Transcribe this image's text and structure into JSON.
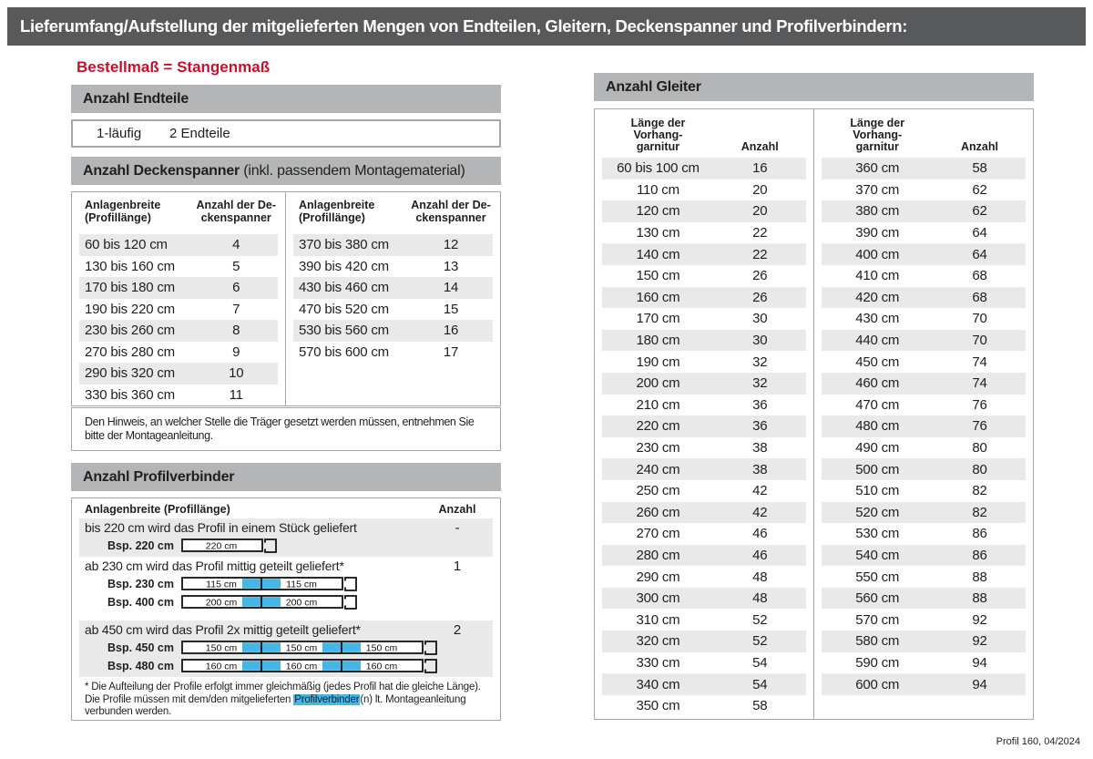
{
  "colors": {
    "banner_bg": "#58595b",
    "section_bar_bg": "#b3b5b6",
    "row_shade": "#e9e9e9",
    "accent_red": "#c8102e",
    "highlight_blue": "#45b6e6",
    "border_gray": "#a6a8ab"
  },
  "page": {
    "banner": "Lieferumfang/Aufstellung der mitgelieferten Mengen von Endteilen, Gleitern, Deckenspanner und Profilverbindern:",
    "order_note": "Bestellmaß = Stangenmaß",
    "footer": "Profil 160, 04/2024"
  },
  "endteile": {
    "bar": "Anzahl Endteile",
    "row_label": "1-läufig",
    "row_value": "2 Endteile"
  },
  "deckenspanner": {
    "bar_bold": "Anzahl Deckenspanner",
    "bar_rest": " (inkl. passendem Montagematerial)",
    "col_label_line1": "Anlagenbreite",
    "col_label_line2": "(Profillänge)",
    "col_value_line1": "Anzahl der De-",
    "col_value_line2": "ckenspanner",
    "left_rows": [
      [
        "60 bis 120 cm",
        "4"
      ],
      [
        "130 bis 160 cm",
        "5"
      ],
      [
        "170 bis 180 cm",
        "6"
      ],
      [
        "190 bis 220 cm",
        "7"
      ],
      [
        "230 bis 260 cm",
        "8"
      ],
      [
        "270 bis 280 cm",
        "9"
      ],
      [
        "290 bis 320 cm",
        "10"
      ],
      [
        "330 bis 360 cm",
        "11"
      ]
    ],
    "right_rows": [
      [
        "370 bis 380 cm",
        "12"
      ],
      [
        "390 bis 420 cm",
        "13"
      ],
      [
        "430 bis 460 cm",
        "14"
      ],
      [
        "470 bis 520 cm",
        "15"
      ],
      [
        "530 bis 560 cm",
        "16"
      ],
      [
        "570 bis 600 cm",
        "17"
      ]
    ],
    "note": "Den Hinweis, an welcher Stelle die Träger gesetzt werden müssen, entnehmen Sie bitte der Montageanleitung."
  },
  "profilverbinder": {
    "bar": "Anzahl Profilverbinder",
    "col_label": "Anlagenbreite (Profillänge)",
    "col_value": "Anzahl",
    "cases": [
      {
        "text": "bis 220 cm wird das Profil in einem Stück geliefert",
        "count": "-",
        "shaded": true,
        "examples": [
          {
            "label": "Bsp. 220 cm",
            "segments": [
              "220 cm"
            ]
          }
        ]
      },
      {
        "text": "ab 230 cm wird das Profil mittig geteilt geliefert*",
        "count": "1",
        "shaded": false,
        "examples": [
          {
            "label": "Bsp. 230 cm",
            "segments": [
              "115 cm",
              "115 cm"
            ]
          },
          {
            "label": "Bsp. 400 cm",
            "segments": [
              "200 cm",
              "200 cm"
            ]
          }
        ]
      },
      {
        "text": "ab 450 cm wird das Profil 2x mittig geteilt geliefert*",
        "count": "2",
        "shaded": true,
        "examples": [
          {
            "label": "Bsp. 450 cm",
            "segments": [
              "150 cm",
              "150 cm",
              "150 cm"
            ]
          },
          {
            "label": "Bsp. 480 cm",
            "segments": [
              "160 cm",
              "160 cm",
              "160 cm"
            ]
          }
        ]
      }
    ],
    "footnote_before": "* Die Aufteilung der Profile erfolgt immer gleichmäßig (jedes Profil hat die gleiche Länge). Die Profile müssen mit dem/den mitgelieferten ",
    "footnote_highlight": "Profilverbinder",
    "footnote_after": "(n) lt. Montageanleitung verbunden werden."
  },
  "gleiter": {
    "bar": "Anzahl Gleiter",
    "col_label_line1": "Länge der",
    "col_label_line2": "Vorhang-",
    "col_label_line3": "garnitur",
    "col_value": "Anzahl",
    "left_rows": [
      [
        "60 bis 100 cm",
        "16"
      ],
      [
        "110 cm",
        "20"
      ],
      [
        "120 cm",
        "20"
      ],
      [
        "130 cm",
        "22"
      ],
      [
        "140 cm",
        "22"
      ],
      [
        "150 cm",
        "26"
      ],
      [
        "160 cm",
        "26"
      ],
      [
        "170 cm",
        "30"
      ],
      [
        "180 cm",
        "30"
      ],
      [
        "190 cm",
        "32"
      ],
      [
        "200 cm",
        "32"
      ],
      [
        "210 cm",
        "36"
      ],
      [
        "220 cm",
        "36"
      ],
      [
        "230 cm",
        "38"
      ],
      [
        "240 cm",
        "38"
      ],
      [
        "250 cm",
        "42"
      ],
      [
        "260 cm",
        "42"
      ],
      [
        "270 cm",
        "46"
      ],
      [
        "280 cm",
        "46"
      ],
      [
        "290 cm",
        "48"
      ],
      [
        "300 cm",
        "48"
      ],
      [
        "310 cm",
        "52"
      ],
      [
        "320 cm",
        "52"
      ],
      [
        "330 cm",
        "54"
      ],
      [
        "340 cm",
        "54"
      ],
      [
        "350 cm",
        "58"
      ]
    ],
    "right_rows": [
      [
        "360 cm",
        "58"
      ],
      [
        "370 cm",
        "62"
      ],
      [
        "380 cm",
        "62"
      ],
      [
        "390 cm",
        "64"
      ],
      [
        "400 cm",
        "64"
      ],
      [
        "410 cm",
        "68"
      ],
      [
        "420 cm",
        "68"
      ],
      [
        "430 cm",
        "70"
      ],
      [
        "440 cm",
        "70"
      ],
      [
        "450 cm",
        "74"
      ],
      [
        "460 cm",
        "74"
      ],
      [
        "470 cm",
        "76"
      ],
      [
        "480 cm",
        "76"
      ],
      [
        "490 cm",
        "80"
      ],
      [
        "500 cm",
        "80"
      ],
      [
        "510 cm",
        "82"
      ],
      [
        "520 cm",
        "82"
      ],
      [
        "530 cm",
        "86"
      ],
      [
        "540 cm",
        "86"
      ],
      [
        "550 cm",
        "88"
      ],
      [
        "560 cm",
        "88"
      ],
      [
        "570 cm",
        "92"
      ],
      [
        "580 cm",
        "92"
      ],
      [
        "590 cm",
        "94"
      ],
      [
        "600 cm",
        "94"
      ]
    ]
  }
}
